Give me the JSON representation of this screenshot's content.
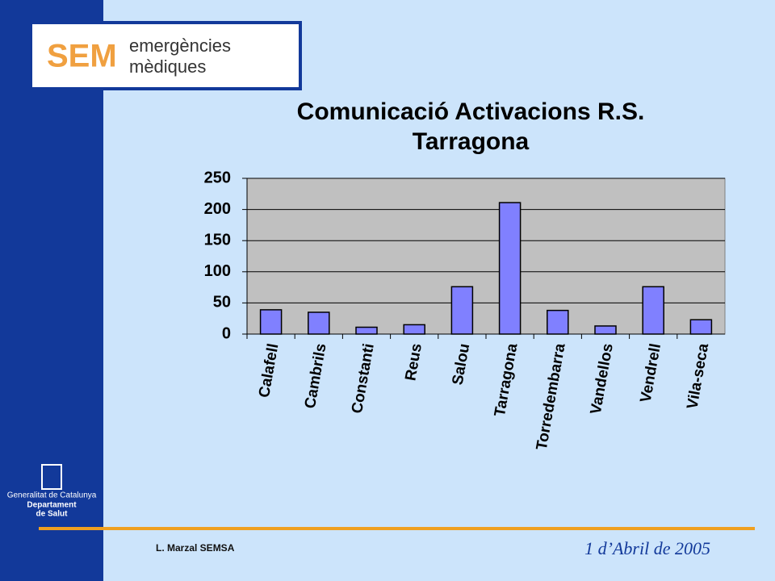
{
  "slide": {
    "logo_mark": "SEM",
    "logo_line1": "emergències",
    "logo_line2": "mèdiques",
    "institution": [
      "Generalitat de Catalunya",
      "Departament",
      "de Salut"
    ],
    "author": "L. Marzal   SEMSA",
    "date": "1 d’Abril  de 2005"
  },
  "chart_data": {
    "type": "bar",
    "title": [
      "Comunicació Activacions R.S.",
      "Tarragona"
    ],
    "categories": [
      "Calafell",
      "Cambrils",
      "Constanti",
      "Reus",
      "Salou",
      "Tarragona",
      "Torredembarra",
      "Vandellos",
      "Vendrell",
      "Vila-seca"
    ],
    "values": [
      39,
      35,
      11,
      15,
      76,
      211,
      38,
      13,
      76,
      23
    ],
    "color": "#8080ff",
    "plot_background": "#c0c0c0",
    "ylim": [
      0,
      250
    ],
    "yticks": [
      0,
      50,
      100,
      150,
      200,
      250
    ],
    "grid": true
  }
}
